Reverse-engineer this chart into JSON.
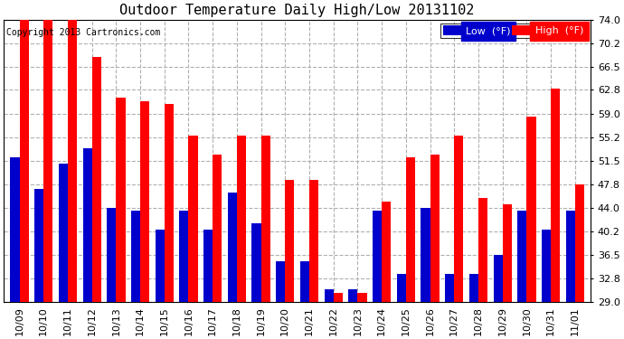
{
  "title": "Outdoor Temperature Daily High/Low 20131102",
  "copyright": "Copyright 2013 Cartronics.com",
  "categories": [
    "10/09",
    "10/10",
    "10/11",
    "10/12",
    "10/13",
    "10/14",
    "10/15",
    "10/16",
    "10/17",
    "10/18",
    "10/19",
    "10/20",
    "10/21",
    "10/22",
    "10/23",
    "10/24",
    "10/25",
    "10/26",
    "10/27",
    "10/28",
    "10/29",
    "10/30",
    "10/31",
    "11/01"
  ],
  "high": [
    74.0,
    74.0,
    74.0,
    68.0,
    61.5,
    61.0,
    60.5,
    55.5,
    52.5,
    55.5,
    55.5,
    48.5,
    48.5,
    30.5,
    30.5,
    45.0,
    52.0,
    52.5,
    55.5,
    45.5,
    44.5,
    58.5,
    63.0,
    47.8
  ],
  "low": [
    52.0,
    47.0,
    51.0,
    53.5,
    44.0,
    43.5,
    40.5,
    43.5,
    40.5,
    46.5,
    41.5,
    35.5,
    35.5,
    31.0,
    31.0,
    43.5,
    33.5,
    44.0,
    33.5,
    33.5,
    36.5,
    43.5,
    40.5,
    43.5
  ],
  "ylim": [
    29.0,
    74.0
  ],
  "yticks": [
    29.0,
    32.8,
    36.5,
    40.2,
    44.0,
    47.8,
    51.5,
    55.2,
    59.0,
    62.8,
    66.5,
    70.2,
    74.0
  ],
  "bar_width": 0.38,
  "high_color": "#ff0000",
  "low_color": "#0000cc",
  "bg_color": "#ffffff",
  "grid_color": "#b0b0b0",
  "title_fontsize": 11,
  "copyright_fontsize": 7,
  "tick_fontsize": 8,
  "legend_low_label": "Low  (°F)",
  "legend_high_label": "High  (°F)"
}
